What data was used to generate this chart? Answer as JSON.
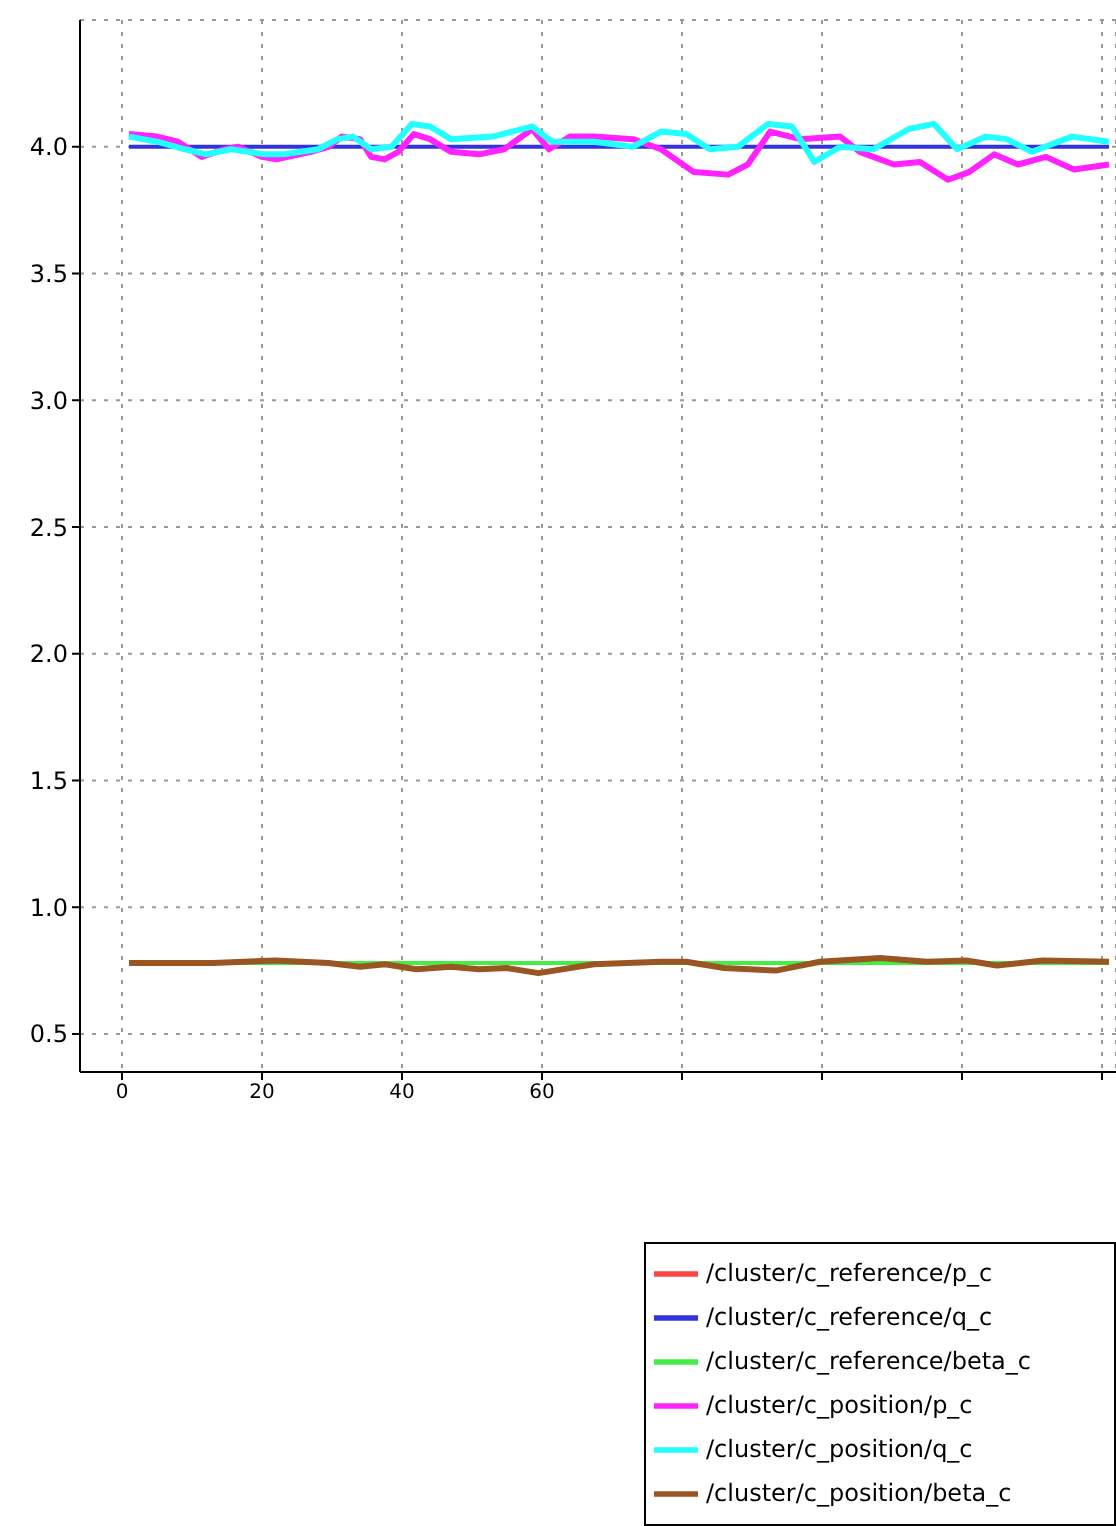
{
  "chart_data": {
    "type": "line",
    "xlim": [
      -6,
      142
    ],
    "ylim": [
      0.35,
      4.5
    ],
    "xticks": [
      0,
      20,
      40,
      60,
      {
        "value": 80,
        "label": null
      },
      {
        "value": 100,
        "label": null
      },
      {
        "value": 120,
        "label": null
      },
      {
        "value": 140,
        "label": null
      }
    ],
    "yticks": [
      0.5,
      {
        "value": 1,
        "label": "1.0"
      },
      1.5,
      {
        "value": 2,
        "label": "2.0"
      },
      2.5,
      {
        "value": 3,
        "label": "3.0"
      },
      3.5,
      {
        "value": 4,
        "label": "4.0"
      }
    ],
    "grid": true,
    "legend": "bottom right",
    "line_style": "solid",
    "marker": "none",
    "series": [
      {
        "name": "/cluster/c_reference/p_c",
        "color": "#ff4444"
      },
      {
        "name": "/cluster/c_reference/q_c",
        "color": "#3333dd",
        "x": [
          1,
          141
        ],
        "values": [
          4.0,
          4.0
        ]
      },
      {
        "name": "/cluster/c_reference/beta_c",
        "color": "#44ee44",
        "x": [
          1,
          141
        ],
        "values": [
          0.78,
          0.78
        ]
      },
      {
        "name": "/cluster/c_position/p_c",
        "color": "#ff22ff",
        "x": [
          1,
          5,
          8,
          11.4,
          14.6,
          16.6,
          20,
          22,
          27,
          29.5,
          31.4,
          34,
          35.6,
          37.5,
          39.5,
          41.7,
          44,
          47,
          51,
          54.6,
          58.6,
          61,
          64,
          67.4,
          73,
          77,
          81.7,
          86.6,
          89.4,
          92.6,
          96.9,
          102.6,
          105.4,
          110.3,
          114,
          118,
          121,
          124.6,
          128,
          132,
          136,
          141
        ],
        "values": [
          4.05,
          4.04,
          4.02,
          3.96,
          3.99,
          4.0,
          3.96,
          3.95,
          3.98,
          4.0,
          4.04,
          4.03,
          3.96,
          3.95,
          3.98,
          4.05,
          4.03,
          3.98,
          3.97,
          3.99,
          4.07,
          3.99,
          4.04,
          4.04,
          4.03,
          3.99,
          3.9,
          3.89,
          3.93,
          4.06,
          4.03,
          4.04,
          3.98,
          3.93,
          3.94,
          3.87,
          3.9,
          3.97,
          3.93,
          3.96,
          3.91,
          3.93
        ]
      },
      {
        "name": "/cluster/c_position/q_c",
        "color": "#22ffff",
        "x": [
          1,
          5,
          9,
          12,
          15.6,
          20.4,
          23,
          28,
          30.8,
          33,
          35.6,
          38.5,
          41.4,
          44,
          47,
          53,
          58.6,
          61.4,
          67.4,
          73,
          77,
          80.6,
          84,
          88,
          92.3,
          95.7,
          98.9,
          102.6,
          107.3,
          112.4,
          116,
          119.3,
          123.4,
          126.4,
          130,
          135.7,
          141
        ],
        "values": [
          4.04,
          4.02,
          3.99,
          3.97,
          3.99,
          3.97,
          3.97,
          3.99,
          4.03,
          4.04,
          3.99,
          4.0,
          4.09,
          4.08,
          4.03,
          4.04,
          4.08,
          4.02,
          4.02,
          4.0,
          4.06,
          4.05,
          3.99,
          4.0,
          4.09,
          4.08,
          3.94,
          4.0,
          3.99,
          4.07,
          4.09,
          3.99,
          4.04,
          4.03,
          3.98,
          4.04,
          4.02
        ]
      },
      {
        "name": "/cluster/c_position/beta_c",
        "color": "#995522",
        "x": [
          1,
          13,
          21.9,
          29.5,
          34,
          37.6,
          42,
          47,
          51,
          55,
          59.5,
          67.4,
          77,
          80.6,
          86,
          93.4,
          99.7,
          108.3,
          115,
          120.6,
          125,
          131.5,
          141
        ],
        "values": [
          0.78,
          0.78,
          0.79,
          0.78,
          0.765,
          0.775,
          0.755,
          0.765,
          0.755,
          0.76,
          0.74,
          0.775,
          0.785,
          0.785,
          0.76,
          0.75,
          0.785,
          0.8,
          0.785,
          0.79,
          0.77,
          0.79,
          0.785
        ]
      }
    ]
  }
}
